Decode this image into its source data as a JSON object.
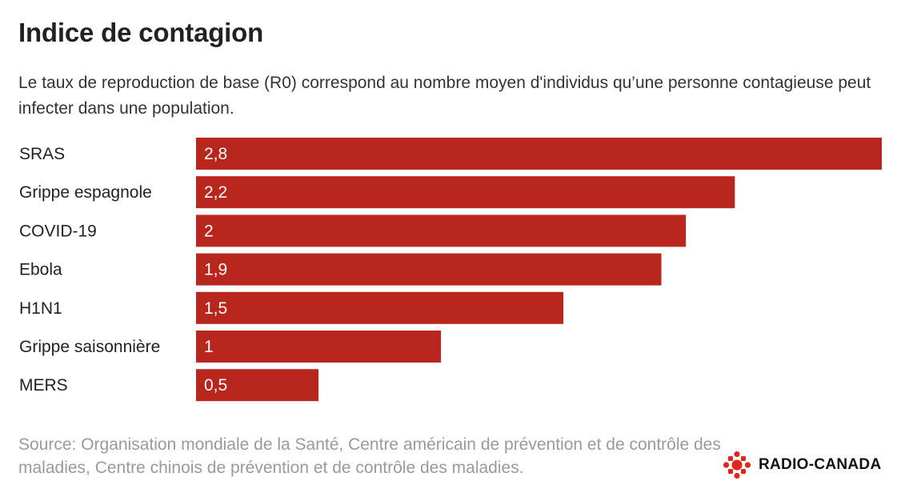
{
  "header": {
    "title": "Indice de contagion",
    "subtitle": "Le taux de reproduction de base (R0) correspond au nombre moyen d'individus qu’une personne contagieuse peut infecter dans une population."
  },
  "chart_data": {
    "type": "bar",
    "orientation": "horizontal",
    "title": "Indice de contagion",
    "categories": [
      "SRAS",
      "Grippe espagnole",
      "COVID-19",
      "Ebola",
      "H1N1",
      "Grippe saisonnière",
      "MERS"
    ],
    "values": [
      2.8,
      2.2,
      2,
      1.9,
      1.5,
      1,
      0.5
    ],
    "value_labels": [
      "2,8",
      "2,2",
      "2",
      "1,9",
      "1,5",
      "1",
      "0,5"
    ],
    "xlim": [
      0,
      2.8
    ],
    "grid": false,
    "legend": "none",
    "bar_color": "#b8261e"
  },
  "footer": {
    "source": "Source: Organisation mondiale de la Santé, Centre américain de prévention et de contrôle des maladies, Centre chinois de prévention et de contrôle des maladies.",
    "logo_text": "RADIO-CANADA",
    "logo_color": "#e1251b"
  }
}
